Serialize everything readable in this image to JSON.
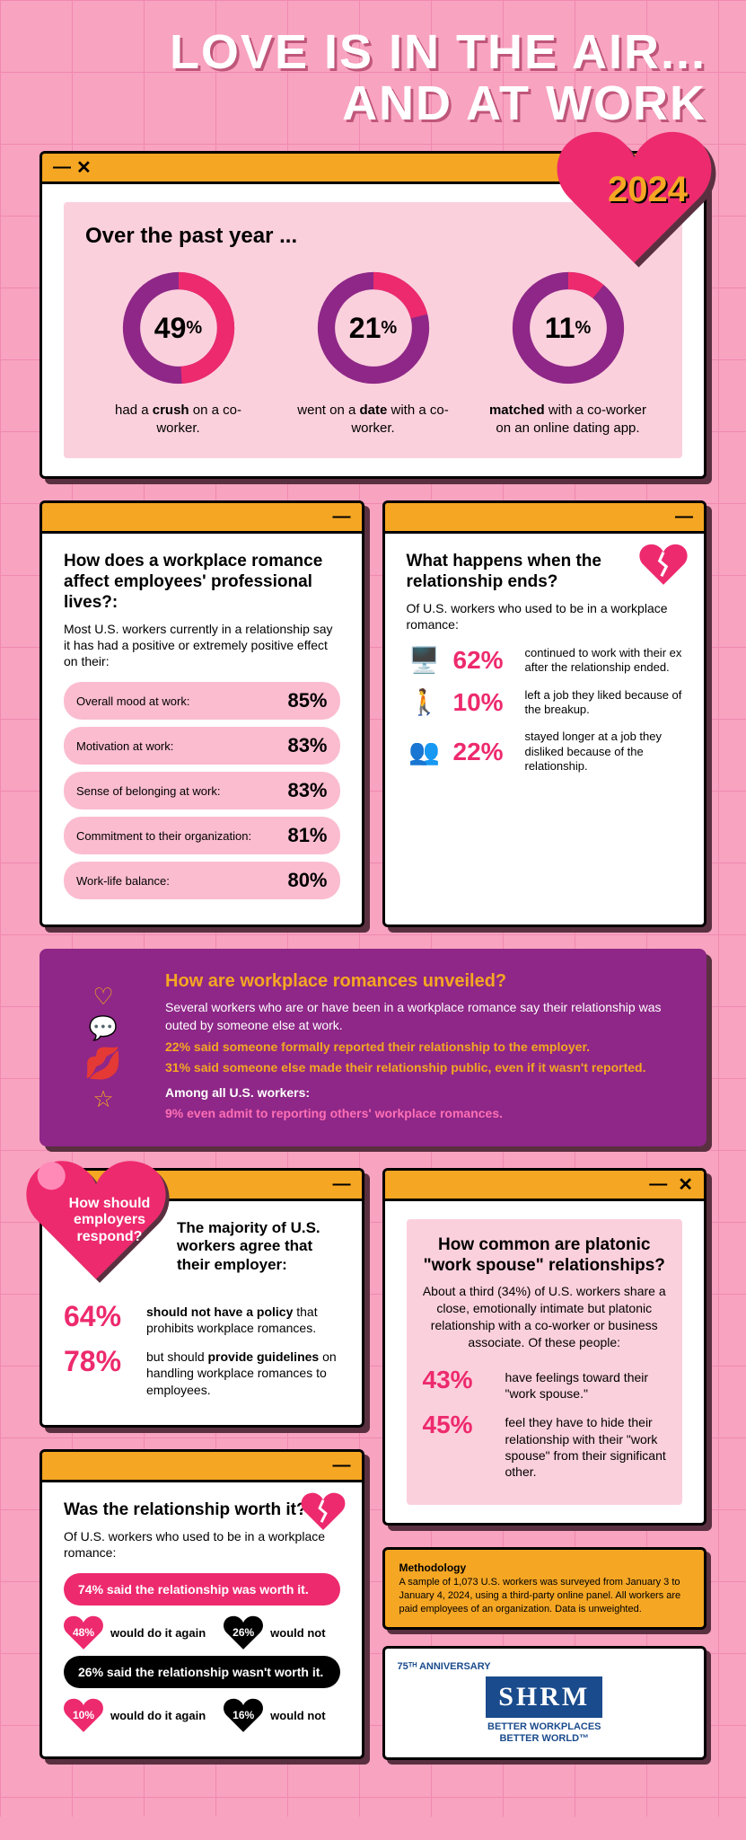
{
  "title_l1": "LOVE IS IN THE AIR...",
  "title_l2": "AND AT WORK",
  "year": "2024",
  "intro": {
    "header": "Over the past year ...",
    "donuts": [
      {
        "pct": 49,
        "label": "had a <b>crush</b> on a co-worker."
      },
      {
        "pct": 21,
        "label": "went on a <b>date</b> with a co-worker."
      },
      {
        "pct": 11,
        "label": "<b>matched</b> with a co-worker on an online dating app."
      }
    ],
    "ring_fill": "#ed2a6d",
    "ring_track": "#8e2787"
  },
  "affect": {
    "title": "How does a workplace romance affect employees' professional lives?:",
    "sub": "Most U.S. workers currently in a relationship say it has had a positive or extremely positive effect on their:",
    "rows": [
      {
        "label": "Overall mood at work:",
        "pct": "85%"
      },
      {
        "label": "Motivation at work:",
        "pct": "83%"
      },
      {
        "label": "Sense of belonging at work:",
        "pct": "83%"
      },
      {
        "label": "Commitment to their organization:",
        "pct": "81%"
      },
      {
        "label": "Work-life balance:",
        "pct": "80%"
      }
    ]
  },
  "ends": {
    "title": "What happens when the relationship ends?",
    "sub": "Of U.S. workers who used to be in a workplace romance:",
    "rows": [
      {
        "pct": "62%",
        "txt": "continued to work with their ex after the relationship ended."
      },
      {
        "pct": "10%",
        "txt": "left a job they liked because of the breakup."
      },
      {
        "pct": "22%",
        "txt": "stayed longer at a job they disliked because of the relationship."
      }
    ]
  },
  "unveiled": {
    "title": "How are workplace romances unveiled?",
    "sub": "Several workers who are or have been in a workplace romance say their relationship was outed by someone else at work.",
    "line1_pct": "22%",
    "line1_txt": " said someone formally reported their relationship to the employer.",
    "line2_pct": "31%",
    "line2_txt": " said someone else made their relationship public, even if it wasn't reported.",
    "line3_label": "Among all U.S. workers:",
    "line3_pct": "9%",
    "line3_txt": " even admit to reporting others' workplace romances."
  },
  "respond": {
    "cta": "How should employers respond?",
    "header": "The majority of U.S. workers agree that their employer:",
    "rows": [
      {
        "pct": "64%",
        "txt": "<b>should not have a policy</b> that prohibits workplace romances."
      },
      {
        "pct": "78%",
        "txt": "but should <b>provide guidelines</b> on handling workplace romances to employees."
      }
    ]
  },
  "platonic": {
    "title": "How common are platonic \"work spouse\" relationships?",
    "sub": "About a third (34%) of U.S. workers share a close, emotionally intimate but platonic relationship with a co-worker or business associate. Of these people:",
    "rows": [
      {
        "pct": "43%",
        "txt": "have feelings toward their \"work spouse.\""
      },
      {
        "pct": "45%",
        "txt": "feel they have to hide their relationship with their \"work spouse\" from their significant other."
      }
    ]
  },
  "worth": {
    "title": "Was the relationship worth it?",
    "sub": "Of U.S. workers who used to be in a workplace romance:",
    "pill1": "74% said the relationship was worth it.",
    "row1": [
      {
        "pct": "48%",
        "txt": "would do it again",
        "color": "#ed2a6d"
      },
      {
        "pct": "26%",
        "txt": "would not",
        "color": "#000"
      }
    ],
    "pill2": "26% said the relationship wasn't worth it.",
    "row2": [
      {
        "pct": "10%",
        "txt": "would do it again",
        "color": "#ed2a6d"
      },
      {
        "pct": "16%",
        "txt": "would not",
        "color": "#000"
      }
    ]
  },
  "method": {
    "title": "Methodology",
    "txt": "A sample of 1,073 U.S. workers was surveyed from January 3 to January 4, 2024, using a third-party online panel. All workers are paid employees of an organization. Data is unweighted."
  },
  "logo": {
    "top": "75ᵀᴴ ANNIVERSARY",
    "name": "SHRM",
    "tag1": "BETTER WORKPLACES",
    "tag2": "BETTER WORLD™"
  }
}
